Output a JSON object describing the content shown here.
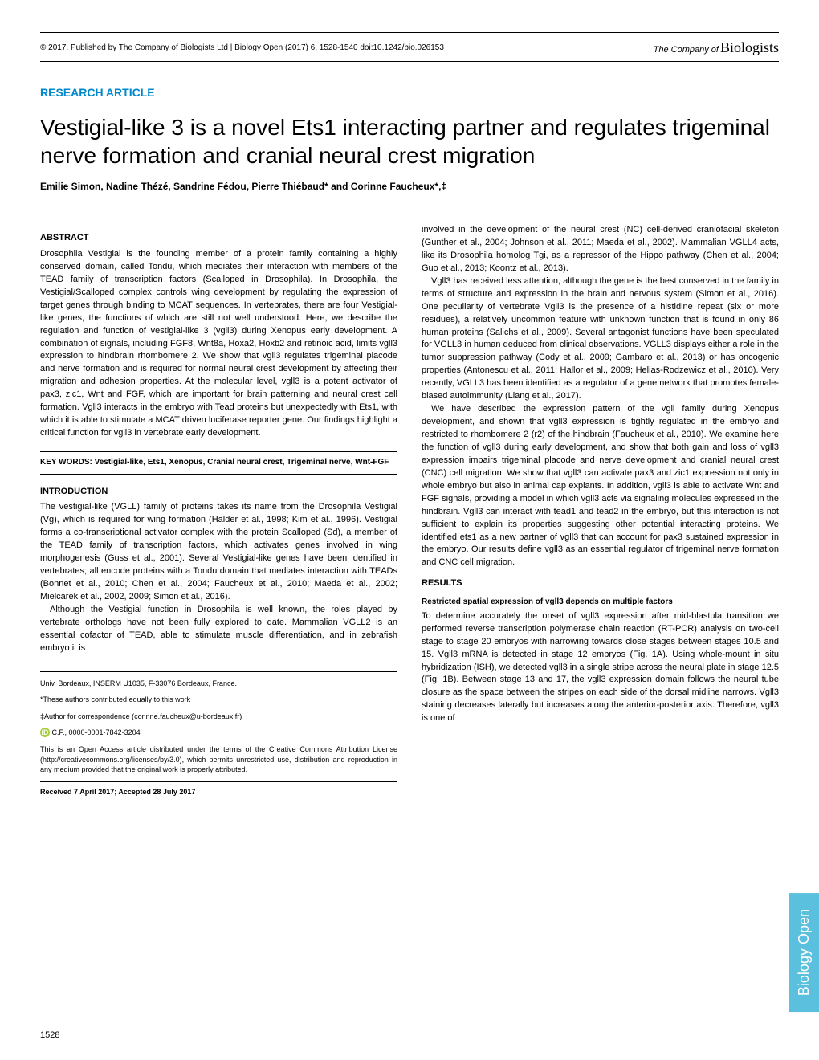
{
  "header": {
    "copyright": "© 2017. Published by The Company of Biologists Ltd | Biology Open (2017) 6, 1528-1540 doi:10.1242/bio.026153",
    "logo_prefix": "The Company of",
    "logo_main": "Biologists"
  },
  "article_type": "RESEARCH ARTICLE",
  "title": "Vestigial-like 3 is a novel Ets1 interacting partner and regulates trigeminal nerve formation and cranial neural crest migration",
  "authors": "Emilie Simon, Nadine Thézé, Sandrine Fédou, Pierre Thiébaud* and Corinne Faucheux*,‡",
  "abstract": {
    "heading": "ABSTRACT",
    "text": "Drosophila Vestigial is the founding member of a protein family containing a highly conserved domain, called Tondu, which mediates their interaction with members of the TEAD family of transcription factors (Scalloped in Drosophila). In Drosophila, the Vestigial/Scalloped complex controls wing development by regulating the expression of target genes through binding to MCAT sequences. In vertebrates, there are four Vestigial-like genes, the functions of which are still not well understood. Here, we describe the regulation and function of vestigial-like 3 (vgll3) during Xenopus early development. A combination of signals, including FGF8, Wnt8a, Hoxa2, Hoxb2 and retinoic acid, limits vgll3 expression to hindbrain rhombomere 2. We show that vgll3 regulates trigeminal placode and nerve formation and is required for normal neural crest development by affecting their migration and adhesion properties. At the molecular level, vgll3 is a potent activator of pax3, zic1, Wnt and FGF, which are important for brain patterning and neural crest cell formation. Vgll3 interacts in the embryo with Tead proteins but unexpectedly with Ets1, with which it is able to stimulate a MCAT driven luciferase reporter gene. Our findings highlight a critical function for vgll3 in vertebrate early development."
  },
  "keywords": "KEY WORDS: Vestigial-like, Ets1, Xenopus, Cranial neural crest, Trigeminal nerve, Wnt-FGF",
  "introduction": {
    "heading": "INTRODUCTION",
    "para1": "The vestigial-like (VGLL) family of proteins takes its name from the Drosophila Vestigial (Vg), which is required for wing formation (Halder et al., 1998; Kim et al., 1996). Vestigial forms a co-transcriptional activator complex with the protein Scalloped (Sd), a member of the TEAD family of transcription factors, which activates genes involved in wing morphogenesis (Guss et al., 2001). Several Vestigial-like genes have been identified in vertebrates; all encode proteins with a Tondu domain that mediates interaction with TEADs (Bonnet et al., 2010; Chen et al., 2004; Faucheux et al., 2010; Maeda et al., 2002; Mielcarek et al., 2002, 2009; Simon et al., 2016).",
    "para2": "Although the Vestigial function in Drosophila is well known, the roles played by vertebrate orthologs have not been fully explored to date. Mammalian VGLL2 is an essential cofactor of TEAD, able to stimulate muscle differentiation, and in zebrafish embryo it is"
  },
  "col2": {
    "para1": "involved in the development of the neural crest (NC) cell-derived craniofacial skeleton (Gunther et al., 2004; Johnson et al., 2011; Maeda et al., 2002). Mammalian VGLL4 acts, like its Drosophila homolog Tgi, as a repressor of the Hippo pathway (Chen et al., 2004; Guo et al., 2013; Koontz et al., 2013).",
    "para2": "Vgll3 has received less attention, although the gene is the best conserved in the family in terms of structure and expression in the brain and nervous system (Simon et al., 2016). One peculiarity of vertebrate Vgll3 is the presence of a histidine repeat (six or more residues), a relatively uncommon feature with unknown function that is found in only 86 human proteins (Salichs et al., 2009). Several antagonist functions have been speculated for VGLL3 in human deduced from clinical observations. VGLL3 displays either a role in the tumor suppression pathway (Cody et al., 2009; Gambaro et al., 2013) or has oncogenic properties (Antonescu et al., 2011; Hallor et al., 2009; Helias-Rodzewicz et al., 2010). Very recently, VGLL3 has been identified as a regulator of a gene network that promotes female-biased autoimmunity (Liang et al., 2017).",
    "para3": "We have described the expression pattern of the vgll family during Xenopus development, and shown that vgll3 expression is tightly regulated in the embryo and restricted to rhombomere 2 (r2) of the hindbrain (Faucheux et al., 2010). We examine here the function of vgll3 during early development, and show that both gain and loss of vgll3 expression impairs trigeminal placode and nerve development and cranial neural crest (CNC) cell migration. We show that vgll3 can activate pax3 and zic1 expression not only in whole embryo but also in animal cap explants. In addition, vgll3 is able to activate Wnt and FGF signals, providing a model in which vgll3 acts via signaling molecules expressed in the hindbrain. Vgll3 can interact with tead1 and tead2 in the embryo, but this interaction is not sufficient to explain its properties suggesting other potential interacting proteins. We identified ets1 as a new partner of vgll3 that can account for pax3 sustained expression in the embryo. Our results define vgll3 as an essential regulator of trigeminal nerve formation and CNC cell migration."
  },
  "results": {
    "heading": "RESULTS",
    "subheading": "Restricted spatial expression of vgll3 depends on multiple factors",
    "para1": "To determine accurately the onset of vgll3 expression after mid-blastula transition we performed reverse transcription polymerase chain reaction (RT-PCR) analysis on two-cell stage to stage 20 embryos with narrowing towards close stages between stages 10.5 and 15. Vgll3 mRNA is detected in stage 12 embryos (Fig. 1A). Using whole-mount in situ hybridization (ISH), we detected vgll3 in a single stripe across the neural plate in stage 12.5 (Fig. 1B). Between stage 13 and 17, the vgll3 expression domain follows the neural tube closure as the space between the stripes on each side of the dorsal midline narrows. Vgll3 staining decreases laterally but increases along the anterior-posterior axis. Therefore, vgll3 is one of"
  },
  "footer": {
    "affiliation": "Univ. Bordeaux, INSERM U1035, F-33076 Bordeaux, France.",
    "contrib": "*These authors contributed equally to this work",
    "correspondence": "‡Author for correspondence (corinne.faucheux@u-bordeaux.fr)",
    "orcid": "C.F., 0000-0001-7842-3204",
    "license": "This is an Open Access article distributed under the terms of the Creative Commons Attribution License (http://creativecommons.org/licenses/by/3.0), which permits unrestricted use, distribution and reproduction in any medium provided that the original work is properly attributed.",
    "received": "Received 7 April 2017; Accepted 28 July 2017"
  },
  "side_tab": "Biology Open",
  "page_number": "1528"
}
